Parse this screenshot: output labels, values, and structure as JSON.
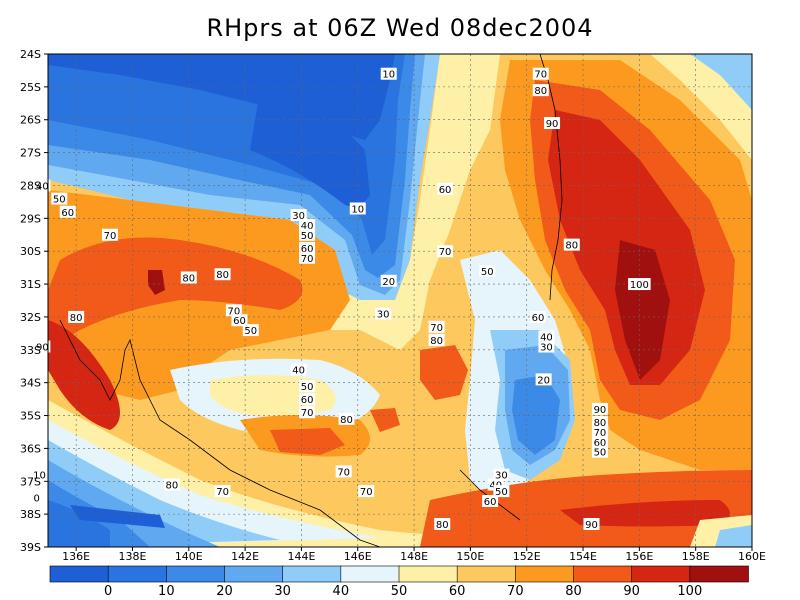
{
  "title": "RHprs at 06Z Wed 08dec2004",
  "lat_ticks": [
    "24S",
    "25S",
    "26S",
    "27S",
    "28S",
    "29S",
    "30S",
    "31S",
    "32S",
    "33S",
    "34S",
    "35S",
    "36S",
    "37S",
    "38S",
    "39S"
  ],
  "lon_ticks": [
    "136E",
    "138E",
    "140E",
    "142E",
    "144E",
    "146E",
    "148E",
    "150E",
    "152E",
    "154E",
    "156E",
    "158E",
    "160E"
  ],
  "colorbar": {
    "labels": [
      "0",
      "10",
      "20",
      "30",
      "40",
      "50",
      "60",
      "70",
      "80",
      "90",
      "100"
    ],
    "colors": [
      "#1e5fd6",
      "#2a74e0",
      "#3c8ae8",
      "#60a8f0",
      "#90ccf8",
      "#e6f4fb",
      "#fff0a8",
      "#fdc95e",
      "#fb9a1e",
      "#f25a1a",
      "#d42612",
      "#a0100e"
    ]
  },
  "contour_labels": [
    {
      "text": "10",
      "lon": 147.1,
      "lat": 24.6
    },
    {
      "text": "70",
      "lon": 152.5,
      "lat": 24.6
    },
    {
      "text": "80",
      "lon": 152.5,
      "lat": 25.1
    },
    {
      "text": "90",
      "lon": 152.9,
      "lat": 26.1
    },
    {
      "text": "40",
      "lon": 134.8,
      "lat": 28.0
    },
    {
      "text": "50",
      "lon": 135.4,
      "lat": 28.4
    },
    {
      "text": "60",
      "lon": 135.7,
      "lat": 28.8
    },
    {
      "text": "10",
      "lon": 146.0,
      "lat": 28.7
    },
    {
      "text": "60",
      "lon": 149.1,
      "lat": 28.1
    },
    {
      "text": "30",
      "lon": 143.9,
      "lat": 28.9
    },
    {
      "text": "40",
      "lon": 144.2,
      "lat": 29.2
    },
    {
      "text": "50",
      "lon": 144.2,
      "lat": 29.5
    },
    {
      "text": "60",
      "lon": 144.2,
      "lat": 29.9
    },
    {
      "text": "70",
      "lon": 144.2,
      "lat": 30.2
    },
    {
      "text": "70",
      "lon": 137.2,
      "lat": 29.5
    },
    {
      "text": "70",
      "lon": 149.1,
      "lat": 30.0
    },
    {
      "text": "80",
      "lon": 153.6,
      "lat": 29.8
    },
    {
      "text": "50",
      "lon": 150.6,
      "lat": 30.6
    },
    {
      "text": "80",
      "lon": 140.0,
      "lat": 30.8
    },
    {
      "text": "80",
      "lon": 141.2,
      "lat": 30.7
    },
    {
      "text": "20",
      "lon": 147.1,
      "lat": 30.9
    },
    {
      "text": "100",
      "lon": 156.0,
      "lat": 31.0
    },
    {
      "text": "70",
      "lon": 141.6,
      "lat": 31.8
    },
    {
      "text": "60",
      "lon": 141.8,
      "lat": 32.1
    },
    {
      "text": "50",
      "lon": 142.2,
      "lat": 32.4
    },
    {
      "text": "30",
      "lon": 146.9,
      "lat": 31.9
    },
    {
      "text": "80",
      "lon": 136.0,
      "lat": 32.0
    },
    {
      "text": "70",
      "lon": 148.8,
      "lat": 32.3
    },
    {
      "text": "80",
      "lon": 148.8,
      "lat": 32.7
    },
    {
      "text": "60",
      "lon": 152.4,
      "lat": 32.0
    },
    {
      "text": "40",
      "lon": 152.7,
      "lat": 32.6
    },
    {
      "text": "30",
      "lon": 152.7,
      "lat": 32.9
    },
    {
      "text": "90",
      "lon": 134.8,
      "lat": 32.9
    },
    {
      "text": "40",
      "lon": 143.9,
      "lat": 33.6
    },
    {
      "text": "20",
      "lon": 152.6,
      "lat": 33.9
    },
    {
      "text": "50",
      "lon": 144.2,
      "lat": 34.1
    },
    {
      "text": "60",
      "lon": 144.2,
      "lat": 34.5
    },
    {
      "text": "70",
      "lon": 144.2,
      "lat": 34.9
    },
    {
      "text": "80",
      "lon": 145.6,
      "lat": 35.1
    },
    {
      "text": "90",
      "lon": 154.6,
      "lat": 34.8
    },
    {
      "text": "80",
      "lon": 154.6,
      "lat": 35.2
    },
    {
      "text": "70",
      "lon": 154.6,
      "lat": 35.5
    },
    {
      "text": "60",
      "lon": 154.6,
      "lat": 35.8
    },
    {
      "text": "50",
      "lon": 154.6,
      "lat": 36.1
    },
    {
      "text": "10",
      "lon": 134.7,
      "lat": 36.8
    },
    {
      "text": "70",
      "lon": 145.5,
      "lat": 36.7
    },
    {
      "text": "30",
      "lon": 151.1,
      "lat": 36.8
    },
    {
      "text": "40",
      "lon": 150.9,
      "lat": 37.1
    },
    {
      "text": "50",
      "lon": 151.1,
      "lat": 37.3
    },
    {
      "text": "60",
      "lon": 150.7,
      "lat": 37.6
    },
    {
      "text": "80",
      "lon": 139.4,
      "lat": 37.1
    },
    {
      "text": "70",
      "lon": 141.2,
      "lat": 37.3
    },
    {
      "text": "70",
      "lon": 146.3,
      "lat": 37.3
    },
    {
      "text": "0",
      "lon": 134.6,
      "lat": 37.5
    },
    {
      "text": "80",
      "lon": 149.0,
      "lat": 38.3
    },
    {
      "text": "90",
      "lon": 154.3,
      "lat": 38.3
    }
  ]
}
